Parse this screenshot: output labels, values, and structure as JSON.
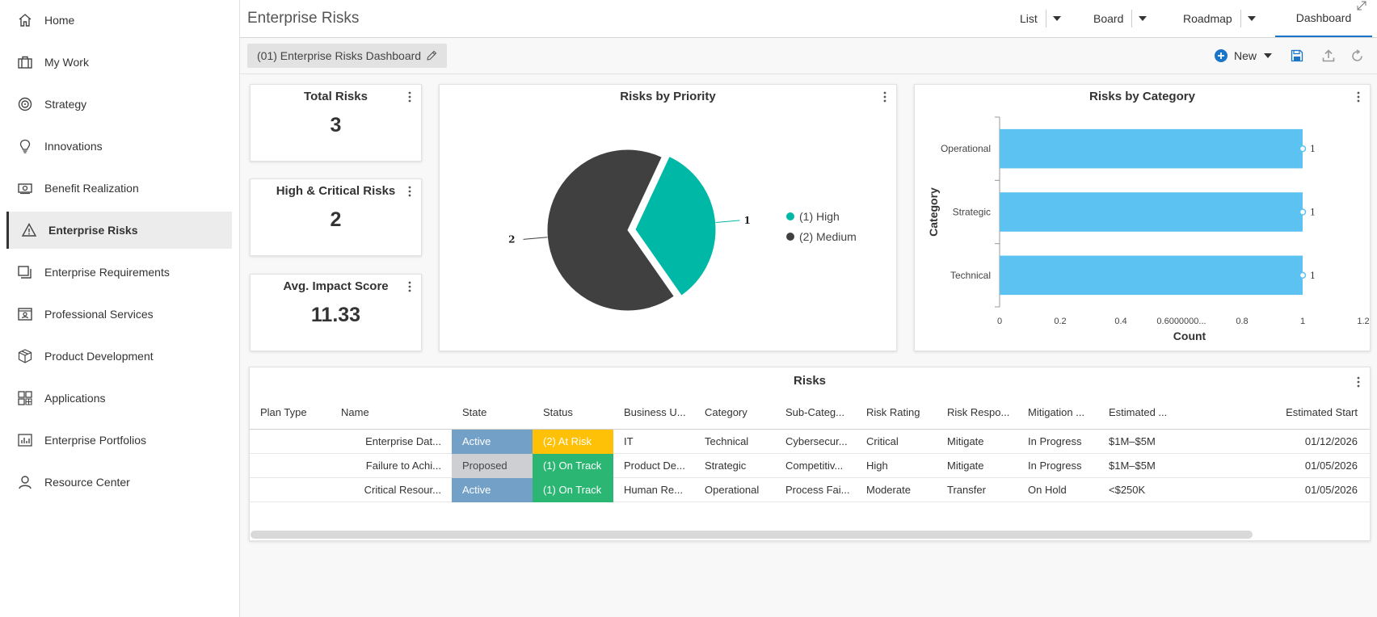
{
  "sidebar": {
    "items": [
      {
        "label": "Home",
        "icon": "home-icon"
      },
      {
        "label": "My Work",
        "icon": "briefcase-icon"
      },
      {
        "label": "Strategy",
        "icon": "target-icon"
      },
      {
        "label": "Innovations",
        "icon": "lightbulb-icon"
      },
      {
        "label": "Benefit Realization",
        "icon": "money-icon"
      },
      {
        "label": "Enterprise Risks",
        "icon": "warning-icon",
        "active": true
      },
      {
        "label": "Enterprise Requirements",
        "icon": "documents-icon"
      },
      {
        "label": "Professional Services",
        "icon": "id-card-icon"
      },
      {
        "label": "Product Development",
        "icon": "package-icon"
      },
      {
        "label": "Applications",
        "icon": "apps-grid-icon"
      },
      {
        "label": "Enterprise Portfolios",
        "icon": "bar-chart-icon"
      },
      {
        "label": "Resource Center",
        "icon": "person-icon"
      }
    ]
  },
  "header": {
    "title": "Enterprise Risks",
    "views": [
      {
        "label": "List"
      },
      {
        "label": "Board"
      },
      {
        "label": "Roadmap"
      },
      {
        "label": "Dashboard",
        "active": true
      }
    ]
  },
  "toolbar": {
    "dashboard_name": "(01) Enterprise Risks Dashboard",
    "new_label": "New",
    "accent": "#1a75c8"
  },
  "kpis": {
    "total": {
      "title": "Total Risks",
      "value": "3"
    },
    "high_critical": {
      "title": "High & Critical Risks",
      "value": "2"
    },
    "avg_impact": {
      "title": "Avg. Impact Score",
      "value": "11.33"
    }
  },
  "priority_card": {
    "title": "Risks by Priority"
  },
  "category_card": {
    "title": "Risks by Category"
  },
  "chart_data": [
    {
      "type": "pie",
      "title": "Risks by Priority",
      "categories": [
        "(1) High",
        "(2) Medium"
      ],
      "values": [
        1,
        2
      ],
      "data_labels": [
        "1",
        "2"
      ],
      "colors": [
        "#00b8a6",
        "#404040"
      ],
      "legend": "right"
    },
    {
      "type": "bar",
      "orientation": "horizontal",
      "title": "Risks by Category",
      "categories": [
        "Operational",
        "Strategic",
        "Technical"
      ],
      "values": [
        1,
        1,
        1
      ],
      "data_labels": [
        "1",
        "1",
        "1"
      ],
      "xlabel": "Count",
      "ylabel": "Category",
      "xlim": [
        0,
        1.2
      ],
      "ticks": [
        "0",
        "0.2",
        "0.4",
        "0.6000000...",
        "0.8",
        "1",
        "1.2"
      ],
      "color": "#5bc2f2"
    }
  ],
  "risks_table": {
    "title": "Risks",
    "columns": [
      "Plan Type",
      "Name",
      "State",
      "Status",
      "Business U...",
      "Category",
      "Sub-Categ...",
      "Risk Rating",
      "Risk Respo...",
      "Mitigation ...",
      "Estimated ...",
      "Estimated Start"
    ],
    "rows": [
      {
        "plan_type": "",
        "name": "Enterprise Dat...",
        "state": "Active",
        "status": "(2) At Risk",
        "business_unit": "IT",
        "category": "Technical",
        "sub_category": "Cybersecur...",
        "risk_rating": "Critical",
        "risk_response": "Mitigate",
        "mitigation": "In Progress",
        "estimated": "$1M–$5M",
        "estimated_start": "01/12/2026"
      },
      {
        "plan_type": "",
        "name": "Failure to Achi...",
        "state": "Proposed",
        "status": "(1) On Track",
        "business_unit": "Product De...",
        "category": "Strategic",
        "sub_category": "Competitiv...",
        "risk_rating": "High",
        "risk_response": "Mitigate",
        "mitigation": "In Progress",
        "estimated": "$1M–$5M",
        "estimated_start": "01/05/2026"
      },
      {
        "plan_type": "",
        "name": "Critical Resour...",
        "state": "Active",
        "status": "(1) On Track",
        "business_unit": "Human Re...",
        "category": "Operational",
        "sub_category": "Process Fai...",
        "risk_rating": "Moderate",
        "risk_response": "Transfer",
        "mitigation": "On Hold",
        "estimated": "<$250K",
        "estimated_start": "01/05/2026"
      }
    ],
    "colors": {
      "active": "#72a0c6",
      "proposed": "#cdcfd3",
      "at_risk": "#ffc107",
      "on_track": "#2bb673"
    }
  }
}
